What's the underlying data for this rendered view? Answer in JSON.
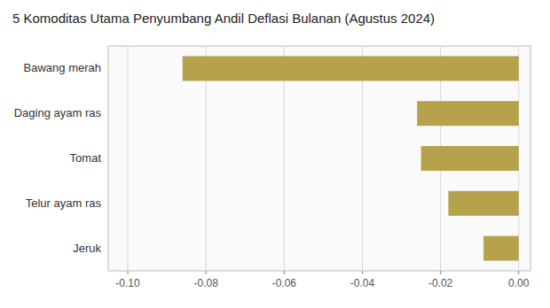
{
  "chart_data": {
    "type": "bar",
    "orientation": "horizontal",
    "title": "5 Komoditas Utama Penyumbang Andil Deflasi Bulanan (Agustus 2024)",
    "categories": [
      "Bawang merah",
      "Daging ayam ras",
      "Tomat",
      "Telur ayam ras",
      "Jeruk"
    ],
    "values": [
      -0.086,
      -0.026,
      -0.025,
      -0.018,
      -0.009
    ],
    "color": "#b5a24a",
    "xlim": [
      -0.105,
      0.003
    ],
    "xticks": [
      {
        "value": -0.1,
        "label": "-0.10"
      },
      -0.08,
      -0.06,
      -0.04,
      -0.02,
      {
        "value": 0,
        "label": "0.00"
      }
    ],
    "grid": true
  }
}
